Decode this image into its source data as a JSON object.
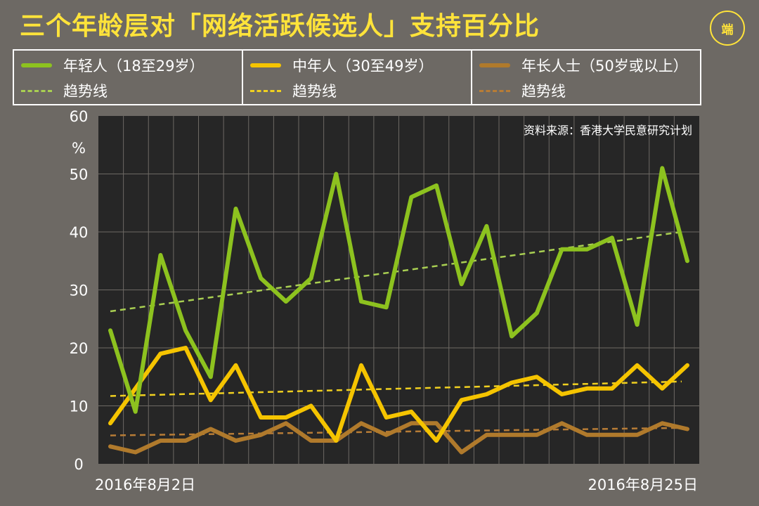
{
  "title": "三个年龄层对「网络活跃候选人」支持百分比",
  "logo_text": "端",
  "source": "资料来源：香港大学民意研究计划",
  "legend": [
    {
      "name": "年轻人（18至29岁）",
      "trend_label": "趋势线",
      "color": "#8dc21f",
      "trend_color": "#a9cf52"
    },
    {
      "name": "中年人（30至49岁）",
      "trend_label": "趋势线",
      "color": "#f5c400",
      "trend_color": "#f0d020"
    },
    {
      "name": "年长人士（50岁或以上）",
      "trend_label": "趋势线",
      "color": "#b07a2c",
      "trend_color": "#b77c36"
    }
  ],
  "colors": {
    "plot_bg": "#262626",
    "grid": "#6d6964",
    "background": "#6d6964",
    "title": "#ffe33a"
  },
  "chart_data": {
    "type": "line",
    "x_start_label": "2016年8月2日",
    "x_end_label": "2016年8月25日",
    "ylim": [
      0,
      60
    ],
    "yticks": [
      "0",
      "10",
      "20",
      "30",
      "40",
      "50",
      "60"
    ],
    "yunit": "%",
    "grid": true,
    "series": [
      {
        "name": "年轻人（18至29岁）",
        "values": [
          23,
          9,
          36,
          23,
          15,
          44,
          32,
          28,
          32,
          50,
          28,
          27,
          46,
          48,
          31,
          41,
          22,
          26,
          37,
          37,
          39,
          24,
          51,
          35
        ],
        "trend": [
          26.3,
          40.0
        ]
      },
      {
        "name": "中年人（30至49岁）",
        "values": [
          7,
          13,
          19,
          20,
          11,
          17,
          8,
          8,
          10,
          4,
          17,
          8,
          9,
          4,
          11,
          12,
          14,
          15,
          12,
          13,
          13,
          17,
          13,
          17
        ],
        "trend": [
          11.7,
          14.2
        ]
      },
      {
        "name": "年长人士（50岁或以上）",
        "values": [
          3,
          2,
          4,
          4,
          6,
          4,
          5,
          7,
          4,
          4,
          7,
          5,
          7,
          7,
          2,
          5,
          5,
          5,
          7,
          5,
          5,
          5,
          7,
          6
        ],
        "trend": [
          4.9,
          6.2
        ]
      }
    ]
  }
}
